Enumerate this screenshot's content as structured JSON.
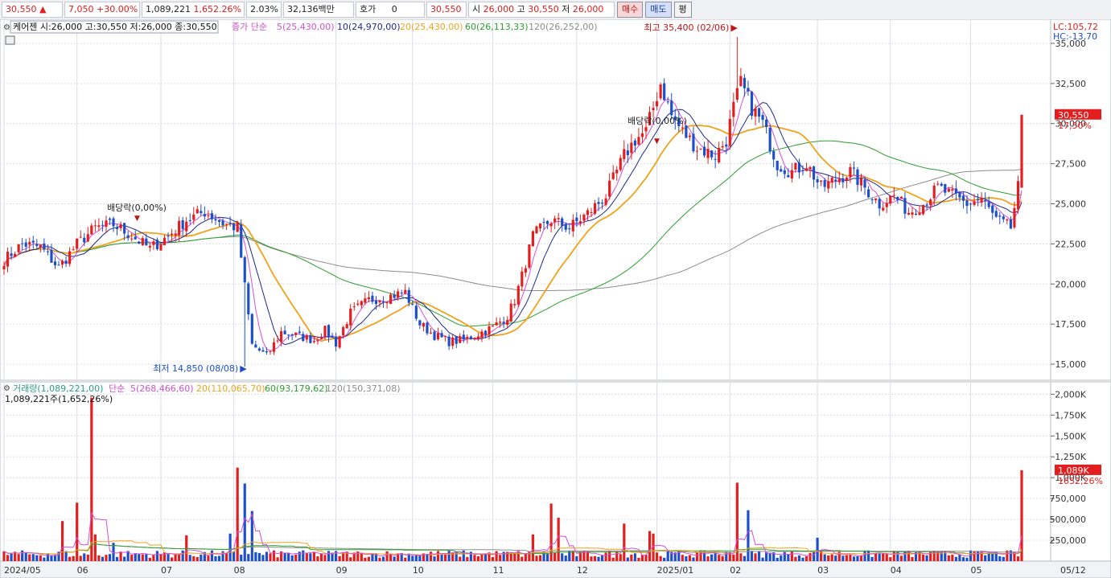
{
  "toolbar": {
    "price": "30,550",
    "change": "7,050",
    "change_pct": "+30.00%",
    "volume": "1,089,221",
    "volume_ratio": "1,652.26%",
    "turnover": "2.03%",
    "amount": "32,136백만",
    "hoga_label": "호가",
    "hoga_value": "0",
    "current": "30,550",
    "open_label": "시",
    "open": "26,000",
    "high_label": "고",
    "high": "30,550",
    "low_label": "저",
    "low": "26,000",
    "buy_label": "매수",
    "sell_label": "매도",
    "flat_label": "평"
  },
  "price_panel": {
    "title": "케어젠 시:26,000 고:30,550 저:26,000 종:30,550",
    "ma_header": "종가 단순",
    "ma_labels": [
      "5(25,430,00)",
      "10(24,970,00)",
      "20(25,430,00)",
      "60(26,113,33)",
      "120(26,252,00)"
    ],
    "lc": "LC:105,72",
    "hc": "HC:-13,70",
    "high_annotation": "최고 35,400 (02/06)",
    "low_annotation": "최저 14,850 (08/08)",
    "dividend_1": "배당락(0,00%)",
    "dividend_2": "배당락(0,00%)",
    "current_tag": "30,550",
    "current_tag_pct": "17,50%"
  },
  "volume_panel": {
    "header": "거래량(1,089,221,00)",
    "ma_header": "단순",
    "ma_labels": [
      "5(268,466,60)",
      "20(110,065,70)",
      "60(93,179,62)",
      "120(150,371,08)"
    ],
    "sub": "1,089,221주(1,652,26%)",
    "current_tag": "1,089K",
    "current_tag_pct": "1652,26%"
  },
  "colors": {
    "up": "#e41e1e",
    "down": "#1c4fc9",
    "ma5": "#d64fd4",
    "ma10": "#1f2a8c",
    "ma20": "#f0a21a",
    "ma60": "#2ca02c",
    "ma120": "#8c8c8c",
    "grid": "#d9dde6"
  },
  "chart_data": {
    "type": "candlestick",
    "price_axis": {
      "ylim": [
        14000,
        35600
      ],
      "ticks": [
        "15,000",
        "17,500",
        "20,000",
        "22,500",
        "25,000",
        "27,500",
        "30,000",
        "32,500",
        "35,000"
      ]
    },
    "volume_axis": {
      "ylim": [
        0,
        2100000
      ],
      "ticks": [
        "250,000",
        "500,000",
        "750,000",
        "1,000K",
        "1,250K",
        "1,500K",
        "1,750K",
        "2,000K"
      ]
    },
    "x_ticks": [
      "2024/05",
      "06",
      "07",
      "08",
      "09",
      "10",
      "11",
      "12",
      "2025/01",
      "02",
      "03",
      "04",
      "05",
      "05/12"
    ],
    "x_tick_index": [
      0,
      20,
      43,
      63,
      91,
      112,
      134,
      157,
      179,
      199,
      223,
      243,
      265,
      290
    ],
    "anchors": [
      [
        0,
        21500
      ],
      [
        5,
        22500
      ],
      [
        10,
        22300
      ],
      [
        15,
        21000
      ],
      [
        20,
        22500
      ],
      [
        25,
        23500
      ],
      [
        30,
        23700
      ],
      [
        35,
        23000
      ],
      [
        40,
        22200
      ],
      [
        45,
        23000
      ],
      [
        50,
        24000
      ],
      [
        55,
        24500
      ],
      [
        60,
        23800
      ],
      [
        64,
        23500
      ],
      [
        68,
        16200
      ],
      [
        72,
        15500
      ],
      [
        76,
        17000
      ],
      [
        80,
        16800
      ],
      [
        85,
        16500
      ],
      [
        88,
        17100
      ],
      [
        91,
        16300
      ],
      [
        95,
        18200
      ],
      [
        100,
        19000
      ],
      [
        105,
        19200
      ],
      [
        110,
        19500
      ],
      [
        114,
        17500
      ],
      [
        118,
        16800
      ],
      [
        122,
        16400
      ],
      [
        126,
        16500
      ],
      [
        130,
        16900
      ],
      [
        134,
        17300
      ],
      [
        138,
        18000
      ],
      [
        140,
        19000
      ],
      [
        142,
        20500
      ],
      [
        145,
        23000
      ],
      [
        150,
        24000
      ],
      [
        155,
        23500
      ],
      [
        160,
        24400
      ],
      [
        165,
        25500
      ],
      [
        170,
        28000
      ],
      [
        173,
        29000
      ],
      [
        176,
        29500
      ],
      [
        178,
        31000
      ],
      [
        180,
        32500
      ],
      [
        183,
        30500
      ],
      [
        186,
        29500
      ],
      [
        190,
        28500
      ],
      [
        195,
        28000
      ],
      [
        198,
        29000
      ],
      [
        200,
        31000
      ],
      [
        202,
        32500
      ],
      [
        205,
        31000
      ],
      [
        208,
        30000
      ],
      [
        212,
        27500
      ],
      [
        216,
        27000
      ],
      [
        220,
        27500
      ],
      [
        224,
        26000
      ],
      [
        228,
        26500
      ],
      [
        232,
        27000
      ],
      [
        236,
        26000
      ],
      [
        240,
        25000
      ],
      [
        244,
        25500
      ],
      [
        248,
        24500
      ],
      [
        252,
        25000
      ],
      [
        256,
        26000
      ],
      [
        260,
        25500
      ],
      [
        264,
        25000
      ],
      [
        268,
        25300
      ],
      [
        272,
        24000
      ],
      [
        276,
        23500
      ],
      [
        278,
        26000
      ],
      [
        279,
        30550
      ]
    ],
    "high": {
      "value": 35400,
      "date": "02/06"
    },
    "low": {
      "value": 14850,
      "date": "08/08"
    },
    "last": {
      "open": 26000,
      "high": 30550,
      "low": 26000,
      "close": 30550,
      "volume": 1089221
    },
    "volume_spikes": [
      [
        16,
        480000
      ],
      [
        20,
        700000
      ],
      [
        24,
        1960000
      ],
      [
        25,
        320000
      ],
      [
        30,
        220000
      ],
      [
        50,
        310000
      ],
      [
        62,
        330000
      ],
      [
        64,
        1120000
      ],
      [
        66,
        930000
      ],
      [
        68,
        600000
      ],
      [
        145,
        320000
      ],
      [
        150,
        690000
      ],
      [
        152,
        520000
      ],
      [
        170,
        450000
      ],
      [
        177,
        360000
      ],
      [
        178,
        330000
      ],
      [
        201,
        940000
      ],
      [
        204,
        610000
      ],
      [
        223,
        280000
      ],
      [
        279,
        1089221
      ]
    ]
  }
}
